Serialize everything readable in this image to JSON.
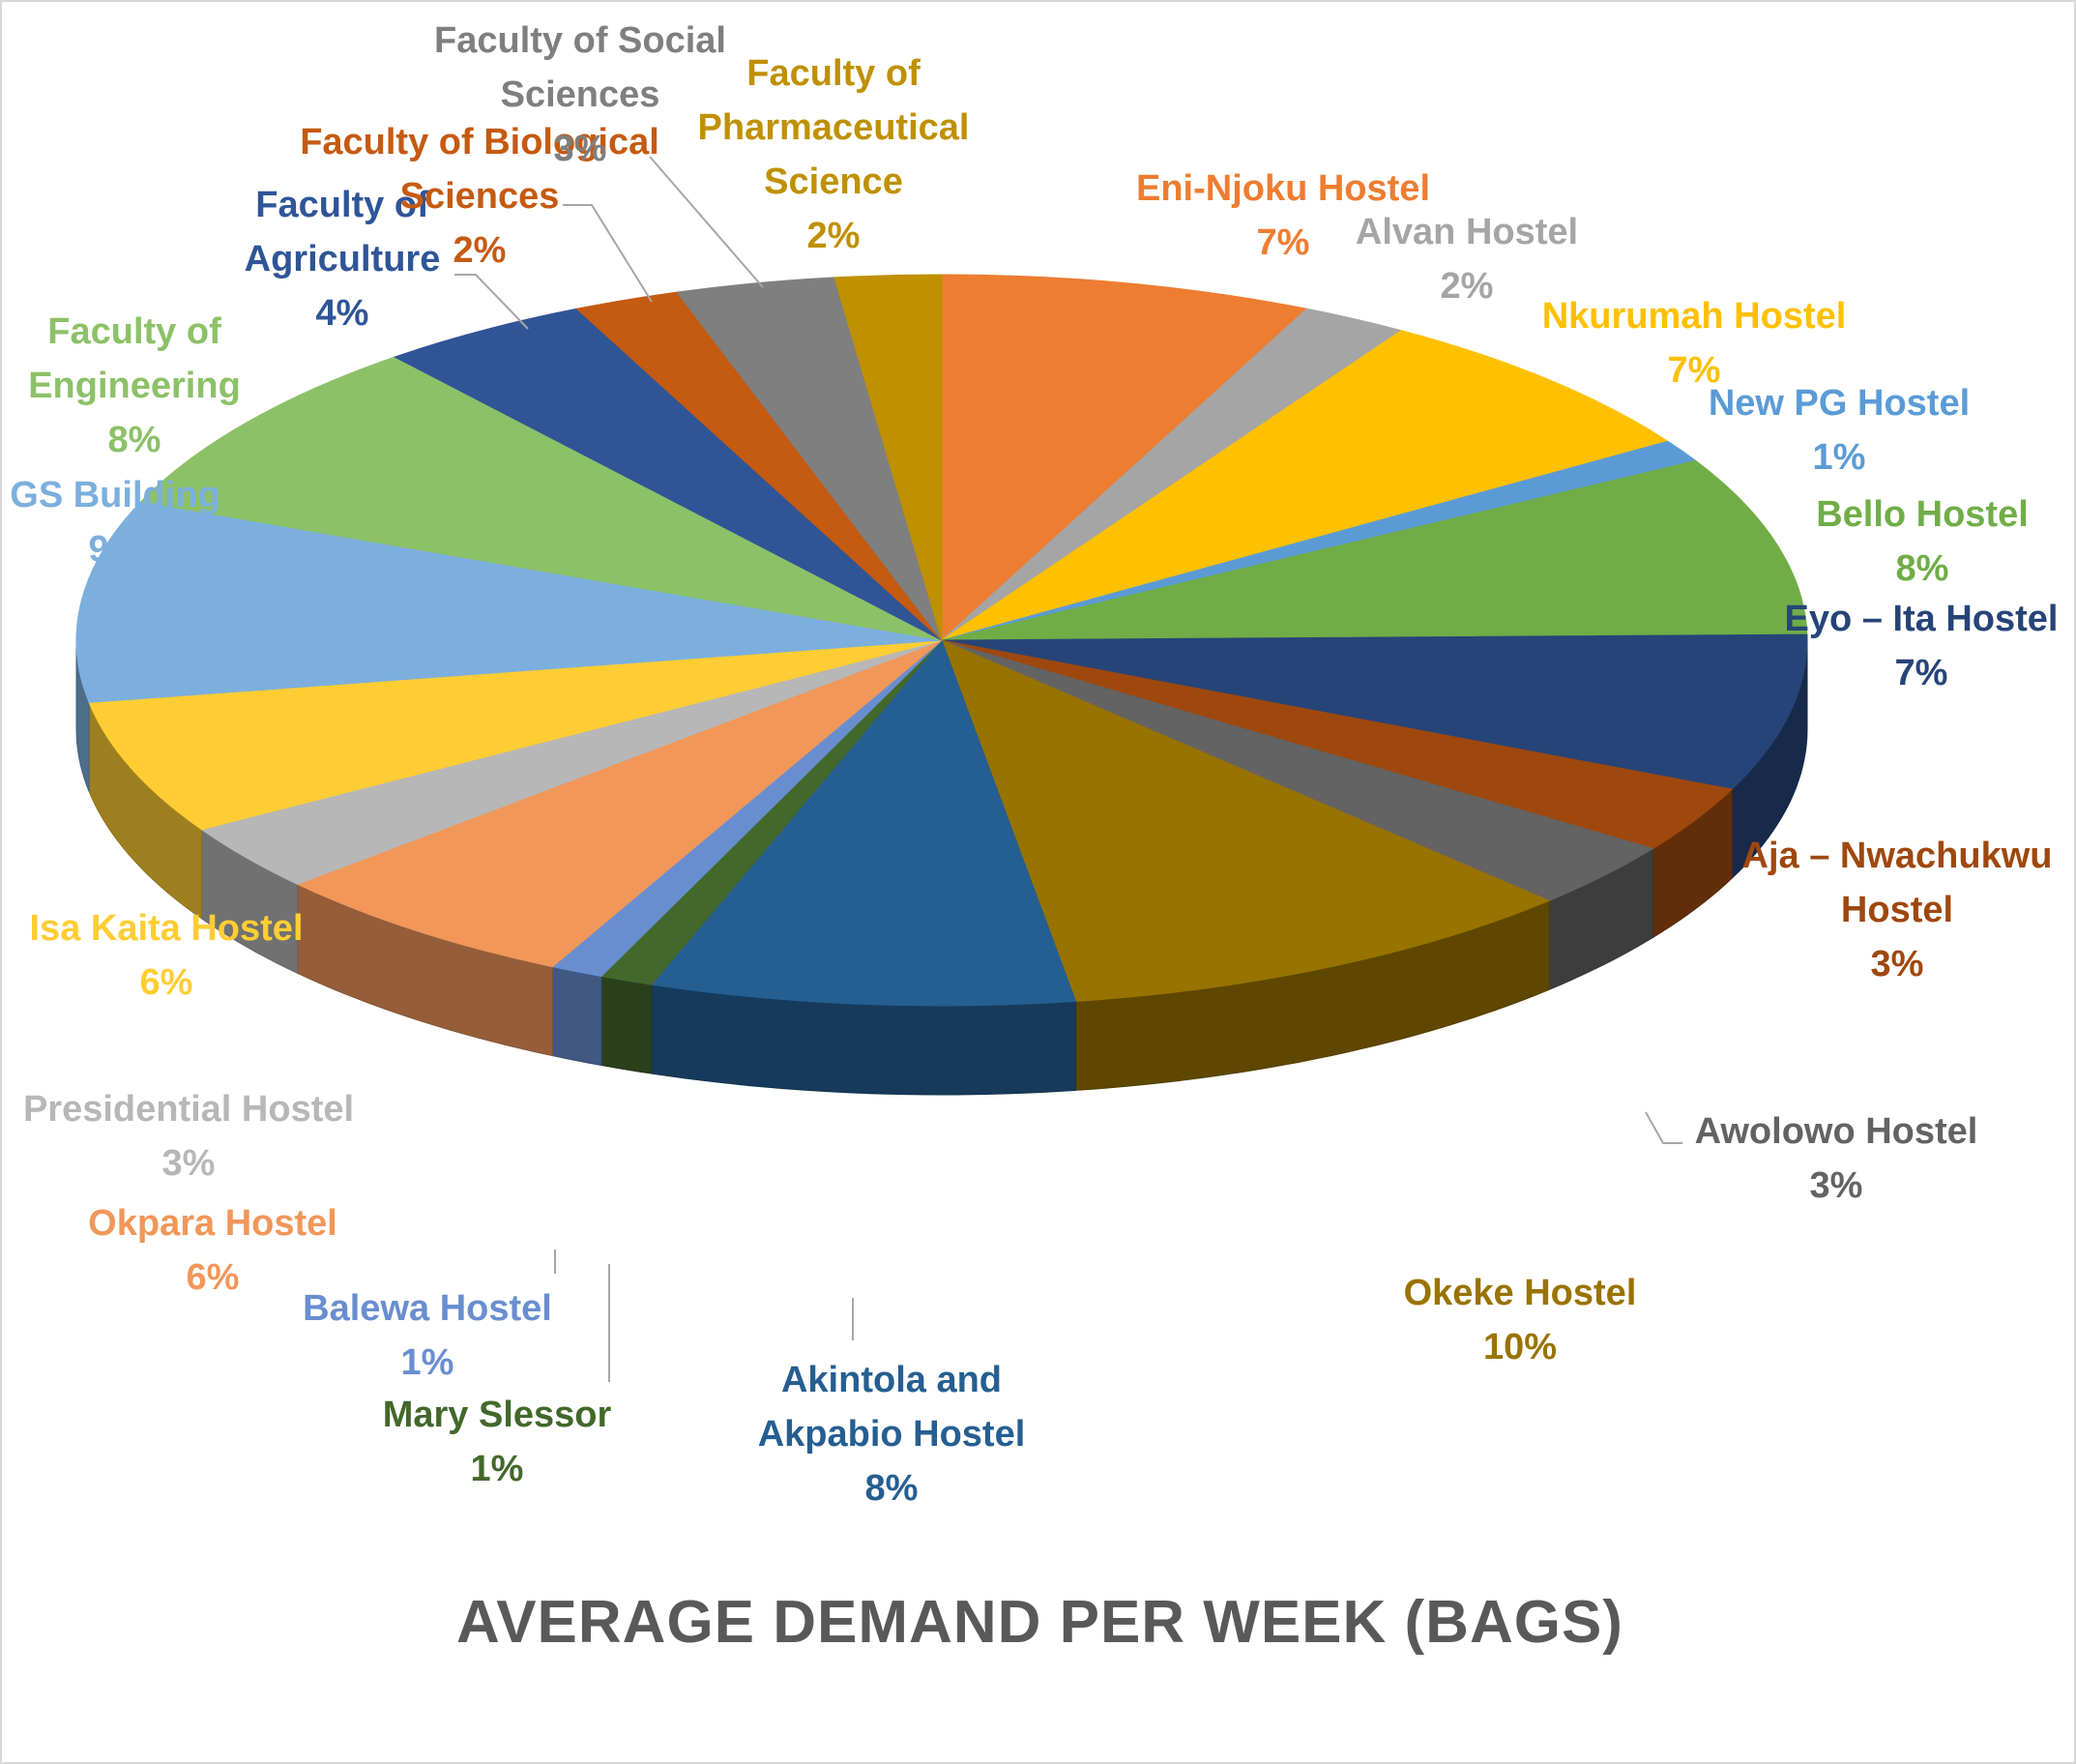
{
  "chart_data": {
    "type": "pie",
    "style": "3d-exploded-perspective",
    "title": "AVERAGE DEMAND PER WEEK (BAGS)",
    "slices": [
      {
        "name": "Eni-Njoku Hostel",
        "label_lines": [
          "Eni-Njoku Hostel"
        ],
        "percent": "7%",
        "value": 7,
        "color": "#ED7D31",
        "label_color": "#ED7D31"
      },
      {
        "name": "Alvan Hostel",
        "label_lines": [
          "Alvan Hostel"
        ],
        "percent": "2%",
        "value": 2,
        "color": "#A5A5A5",
        "label_color": "#A5A5A5"
      },
      {
        "name": "Nkurumah Hostel",
        "label_lines": [
          "Nkurumah Hostel"
        ],
        "percent": "7%",
        "value": 7,
        "color": "#FFC000",
        "label_color": "#FFC000"
      },
      {
        "name": "New PG Hostel",
        "label_lines": [
          "New PG Hostel"
        ],
        "percent": "1%",
        "value": 1,
        "color": "#5B9BD5",
        "label_color": "#5B9BD5"
      },
      {
        "name": "Bello Hostel",
        "label_lines": [
          "Bello Hostel"
        ],
        "percent": "8%",
        "value": 8,
        "color": "#70AD47",
        "label_color": "#70AD47"
      },
      {
        "name": "Eyo – Ita Hostel",
        "label_lines": [
          "Eyo – Ita Hostel"
        ],
        "percent": "7%",
        "value": 7,
        "color": "#264478",
        "label_color": "#264478"
      },
      {
        "name": "Aja – Nwachukwu Hostel",
        "label_lines": [
          "Aja – Nwachukwu",
          "Hostel"
        ],
        "percent": "3%",
        "value": 3,
        "color": "#9E480E",
        "label_color": "#9E480E"
      },
      {
        "name": "Awolowo Hostel",
        "label_lines": [
          "Awolowo Hostel"
        ],
        "percent": "3%",
        "value": 3,
        "color": "#636363",
        "label_color": "#636363"
      },
      {
        "name": "Okeke Hostel",
        "label_lines": [
          "Okeke Hostel"
        ],
        "percent": "10%",
        "value": 10,
        "color": "#997300",
        "label_color": "#997300"
      },
      {
        "name": "Akintola and Akpabio Hostel",
        "label_lines": [
          "Akintola and",
          "Akpabio Hostel"
        ],
        "percent": "8%",
        "value": 8,
        "color": "#255E91",
        "label_color": "#255E91"
      },
      {
        "name": "Mary Slessor",
        "label_lines": [
          "Mary Slessor"
        ],
        "percent": "1%",
        "value": 1,
        "color": "#43682B",
        "label_color": "#43682B"
      },
      {
        "name": "Balewa Hostel",
        "label_lines": [
          "Balewa Hostel"
        ],
        "percent": "1%",
        "value": 1,
        "color": "#698ED0",
        "label_color": "#698ED0"
      },
      {
        "name": "Okpara Hostel",
        "label_lines": [
          "Okpara Hostel"
        ],
        "percent": "6%",
        "value": 6,
        "color": "#F1975A",
        "label_color": "#F1975A"
      },
      {
        "name": "Presidential Hostel",
        "label_lines": [
          "Presidential Hostel"
        ],
        "percent": "3%",
        "value": 3,
        "color": "#B7B7B7",
        "label_color": "#B7B7B7"
      },
      {
        "name": "Isa Kaita Hostel",
        "label_lines": [
          "Isa Kaita Hostel"
        ],
        "percent": "6%",
        "value": 6,
        "color": "#FFCD33",
        "label_color": "#FFCD33"
      },
      {
        "name": "GS Building",
        "label_lines": [
          "GS Building"
        ],
        "percent": "9%",
        "value": 9,
        "color": "#7CAFDD",
        "label_color": "#7CAFDD"
      },
      {
        "name": "Faculty of Engineering",
        "label_lines": [
          "Faculty of",
          "Engineering"
        ],
        "percent": "8%",
        "value": 8,
        "color": "#8CC168",
        "label_color": "#8CC168"
      },
      {
        "name": "Faculty of Agriculture",
        "label_lines": [
          "Faculty of",
          "Agriculture"
        ],
        "percent": "4%",
        "value": 4,
        "color": "#2F5597",
        "label_color": "#2F5597"
      },
      {
        "name": "Faculty of Biological Sciences",
        "label_lines": [
          "Faculty of Biological",
          "Sciences"
        ],
        "percent": "2%",
        "value": 2,
        "color": "#C55A11",
        "label_color": "#C55A11"
      },
      {
        "name": "Faculty of Social Sciences",
        "label_lines": [
          "Faculty of Social",
          "Sciences"
        ],
        "percent": "3%",
        "value": 3,
        "color": "#7F7F7F",
        "label_color": "#7F7F7F"
      },
      {
        "name": "Faculty of Pharmaceutical Science",
        "label_lines": [
          "Faculty of",
          "Pharmaceutical",
          "Science"
        ],
        "percent": "2%",
        "value": 2,
        "color": "#BF9000",
        "label_color": "#BF9000"
      }
    ]
  }
}
